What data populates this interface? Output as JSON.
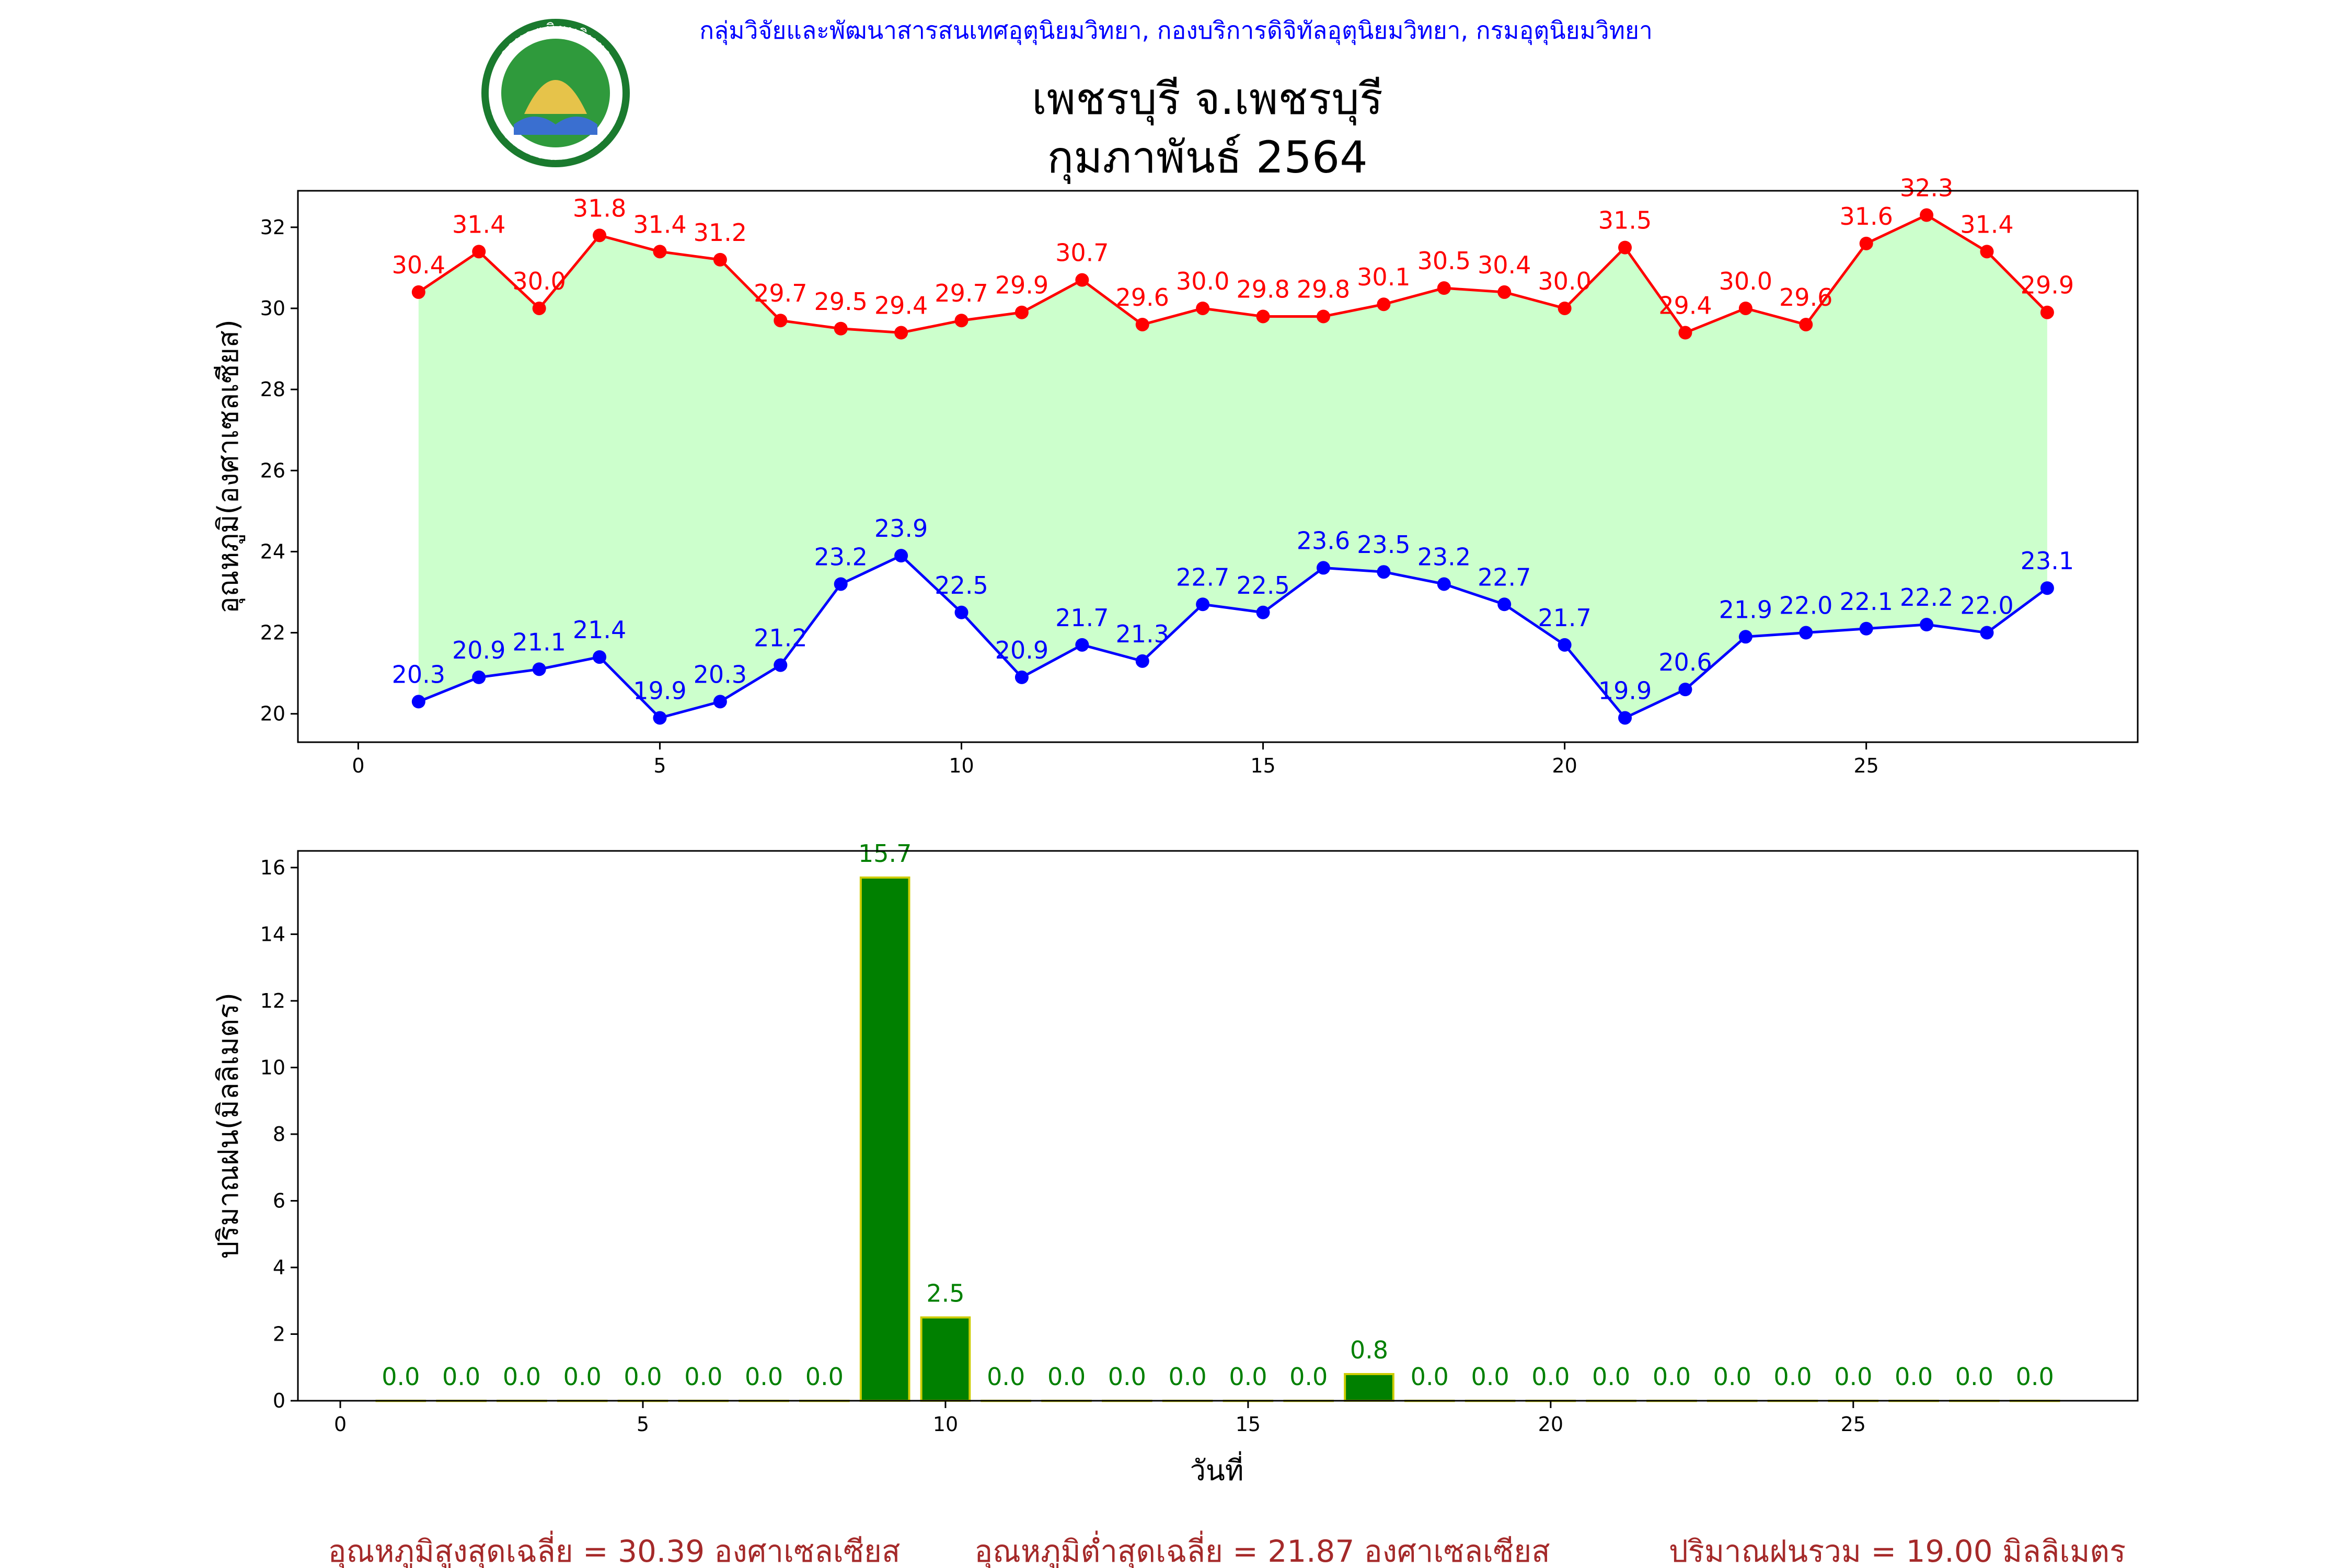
{
  "header": {
    "credit": "กลุ่มวิจัยและพัฒนาสารสนเทศอุตุนิยมวิทยา, กองบริการดิจิทัลอุตุนิยมวิทยา, กรมอุตุนิยมวิทยา",
    "title_line1": "เพชรบุรี จ.เพชรบุรี",
    "title_line2": "กุมภาพันธ์ 2564",
    "logo_top_text": "กรมอุตุนิยมวิทยา",
    "logo_bottom_text": "METEOROLOGICAL DEPARTMENT"
  },
  "chart_data": [
    {
      "type": "line",
      "ylabel": "อุณหภูมิ(องศาเซลเซียส)",
      "xlabel": "",
      "xlim": [
        -1,
        29.5
      ],
      "ylim": [
        19.3,
        32.9
      ],
      "xticks": [
        0,
        5,
        10,
        15,
        20,
        25
      ],
      "yticks": [
        20,
        22,
        24,
        26,
        28,
        30,
        32
      ],
      "x": [
        1,
        2,
        3,
        4,
        5,
        6,
        7,
        8,
        9,
        10,
        11,
        12,
        13,
        14,
        15,
        16,
        17,
        18,
        19,
        20,
        21,
        22,
        23,
        24,
        25,
        26,
        27,
        28
      ],
      "series": [
        {
          "key": "max",
          "color": "#ff0000",
          "values": [
            30.4,
            31.4,
            30.0,
            31.8,
            31.4,
            31.2,
            29.7,
            29.5,
            29.4,
            29.7,
            29.9,
            30.7,
            29.6,
            30.0,
            29.8,
            29.8,
            30.1,
            30.5,
            30.4,
            30.0,
            31.5,
            29.4,
            30.0,
            29.6,
            31.6,
            32.3,
            31.4,
            29.9
          ]
        },
        {
          "key": "min",
          "color": "#0000ff",
          "values": [
            20.3,
            20.9,
            21.1,
            21.4,
            19.9,
            20.3,
            21.2,
            23.2,
            23.9,
            22.5,
            20.9,
            21.7,
            21.3,
            22.7,
            22.5,
            23.6,
            23.5,
            23.2,
            22.7,
            21.7,
            19.9,
            20.6,
            21.9,
            22.0,
            22.1,
            22.2,
            22.0,
            23.1
          ]
        }
      ],
      "fill_color": "#ccffcc",
      "grid": false
    },
    {
      "type": "bar",
      "ylabel": "ปริมาณฝน(มิลลิเมตร)",
      "xlabel": "วันที่",
      "xlim": [
        -0.7,
        29.7
      ],
      "ylim": [
        0,
        16.5
      ],
      "xticks": [
        0,
        5,
        10,
        15,
        20,
        25
      ],
      "yticks": [
        0,
        2,
        4,
        6,
        8,
        10,
        12,
        14,
        16
      ],
      "x": [
        1,
        2,
        3,
        4,
        5,
        6,
        7,
        8,
        9,
        10,
        11,
        12,
        13,
        14,
        15,
        16,
        17,
        18,
        19,
        20,
        21,
        22,
        23,
        24,
        25,
        26,
        27,
        28
      ],
      "values": [
        0.0,
        0.0,
        0.0,
        0.0,
        0.0,
        0.0,
        0.0,
        0.0,
        15.7,
        2.5,
        0.0,
        0.0,
        0.0,
        0.0,
        0.0,
        0.0,
        0.8,
        0.0,
        0.0,
        0.0,
        0.0,
        0.0,
        0.0,
        0.0,
        0.0,
        0.0,
        0.0,
        0.0
      ],
      "bar_color": "#008000",
      "bar_edge_color": "#cccc00",
      "label_color": "#008000",
      "grid": false
    }
  ],
  "summary": {
    "avg_max": "อุณหภูมิสูงสุดเฉลี่ย = 30.39 องศาเซลเซียส",
    "avg_min": "อุณหภูมิต่ำสุดเฉลี่ย = 21.87 องศาเซลเซียส",
    "total_rain": "ปริมาณฝนรวม = 19.00 มิลลิเมตร"
  }
}
